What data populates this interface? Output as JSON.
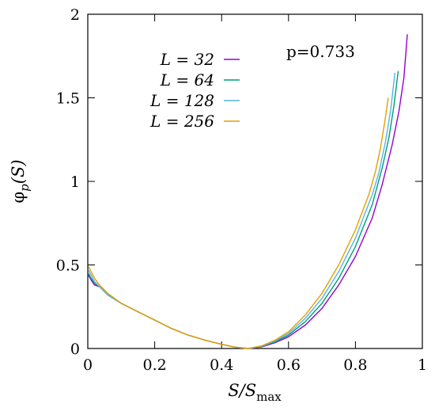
{
  "chart_data": {
    "type": "line",
    "xlim": [
      0,
      1
    ],
    "ylim": [
      0,
      2
    ],
    "xticks": [
      "0",
      "0.2",
      "0.4",
      "0.6",
      "0.8",
      "1"
    ],
    "yticks": [
      "0",
      "0.5",
      "1",
      "1.5",
      "2"
    ],
    "xlabel": {
      "main": "S/S",
      "sub": "max"
    },
    "ylabel": {
      "main": "φ",
      "sub": "p",
      "tail": "(S)"
    },
    "annotation": "p=0.733",
    "legend_position": "top-left",
    "grid": false,
    "series": [
      {
        "name": "L = 32",
        "color": "#9400d3",
        "points": [
          [
            0.002,
            0.44
          ],
          [
            0.01,
            0.41
          ],
          [
            0.02,
            0.38
          ],
          [
            0.035,
            0.37
          ],
          [
            0.06,
            0.32
          ],
          [
            0.1,
            0.27
          ],
          [
            0.15,
            0.22
          ],
          [
            0.2,
            0.17
          ],
          [
            0.25,
            0.12
          ],
          [
            0.3,
            0.08
          ],
          [
            0.35,
            0.05
          ],
          [
            0.4,
            0.025
          ],
          [
            0.44,
            0.008
          ],
          [
            0.48,
            0.0
          ],
          [
            0.52,
            0.01
          ],
          [
            0.56,
            0.035
          ],
          [
            0.6,
            0.07
          ],
          [
            0.65,
            0.14
          ],
          [
            0.7,
            0.24
          ],
          [
            0.75,
            0.38
          ],
          [
            0.8,
            0.55
          ],
          [
            0.85,
            0.78
          ],
          [
            0.88,
            0.98
          ],
          [
            0.91,
            1.22
          ],
          [
            0.93,
            1.42
          ],
          [
            0.945,
            1.62
          ],
          [
            0.955,
            1.88
          ]
        ]
      },
      {
        "name": "L = 64",
        "color": "#009e73",
        "points": [
          [
            0.002,
            0.45
          ],
          [
            0.01,
            0.42
          ],
          [
            0.02,
            0.39
          ],
          [
            0.035,
            0.37
          ],
          [
            0.06,
            0.32
          ],
          [
            0.1,
            0.27
          ],
          [
            0.15,
            0.22
          ],
          [
            0.2,
            0.17
          ],
          [
            0.25,
            0.12
          ],
          [
            0.3,
            0.08
          ],
          [
            0.35,
            0.05
          ],
          [
            0.4,
            0.025
          ],
          [
            0.44,
            0.008
          ],
          [
            0.48,
            0.0
          ],
          [
            0.52,
            0.012
          ],
          [
            0.56,
            0.04
          ],
          [
            0.6,
            0.08
          ],
          [
            0.65,
            0.16
          ],
          [
            0.7,
            0.27
          ],
          [
            0.75,
            0.42
          ],
          [
            0.8,
            0.61
          ],
          [
            0.85,
            0.86
          ],
          [
            0.88,
            1.08
          ],
          [
            0.9,
            1.26
          ],
          [
            0.915,
            1.45
          ],
          [
            0.928,
            1.66
          ]
        ]
      },
      {
        "name": "L = 128",
        "color": "#56b4e9",
        "points": [
          [
            0.002,
            0.47
          ],
          [
            0.01,
            0.44
          ],
          [
            0.02,
            0.4
          ],
          [
            0.035,
            0.37
          ],
          [
            0.06,
            0.32
          ],
          [
            0.1,
            0.27
          ],
          [
            0.15,
            0.22
          ],
          [
            0.2,
            0.17
          ],
          [
            0.25,
            0.12
          ],
          [
            0.3,
            0.08
          ],
          [
            0.35,
            0.05
          ],
          [
            0.4,
            0.025
          ],
          [
            0.44,
            0.008
          ],
          [
            0.48,
            0.0
          ],
          [
            0.52,
            0.014
          ],
          [
            0.56,
            0.045
          ],
          [
            0.6,
            0.09
          ],
          [
            0.65,
            0.18
          ],
          [
            0.7,
            0.3
          ],
          [
            0.75,
            0.46
          ],
          [
            0.8,
            0.66
          ],
          [
            0.85,
            0.92
          ],
          [
            0.87,
            1.05
          ],
          [
            0.89,
            1.24
          ],
          [
            0.905,
            1.42
          ],
          [
            0.918,
            1.65
          ]
        ]
      },
      {
        "name": "L = 256",
        "color": "#e69f00",
        "points": [
          [
            0.002,
            0.49
          ],
          [
            0.01,
            0.46
          ],
          [
            0.02,
            0.42
          ],
          [
            0.035,
            0.38
          ],
          [
            0.06,
            0.33
          ],
          [
            0.1,
            0.27
          ],
          [
            0.15,
            0.22
          ],
          [
            0.2,
            0.17
          ],
          [
            0.25,
            0.12
          ],
          [
            0.3,
            0.08
          ],
          [
            0.35,
            0.05
          ],
          [
            0.4,
            0.025
          ],
          [
            0.44,
            0.008
          ],
          [
            0.48,
            0.0
          ],
          [
            0.52,
            0.016
          ],
          [
            0.56,
            0.05
          ],
          [
            0.6,
            0.1
          ],
          [
            0.65,
            0.2
          ],
          [
            0.7,
            0.33
          ],
          [
            0.75,
            0.5
          ],
          [
            0.8,
            0.71
          ],
          [
            0.84,
            0.92
          ],
          [
            0.86,
            1.06
          ],
          [
            0.875,
            1.2
          ],
          [
            0.888,
            1.36
          ],
          [
            0.898,
            1.5
          ]
        ]
      }
    ]
  }
}
